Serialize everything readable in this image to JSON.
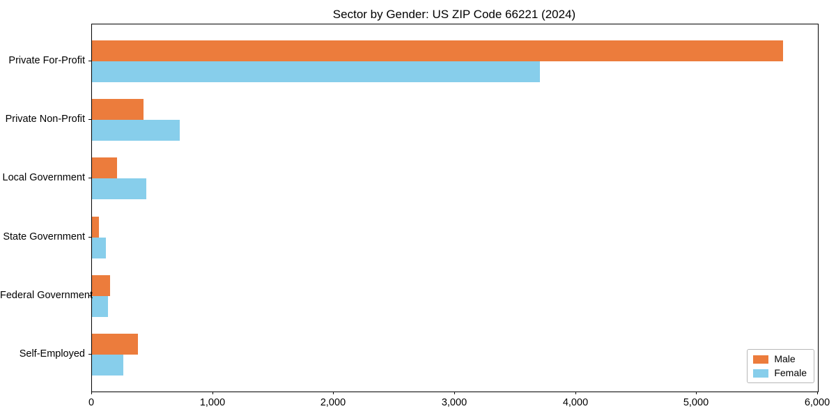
{
  "chart_data": {
    "type": "bar",
    "orientation": "horizontal",
    "title": "Sector by Gender: US ZIP Code 66221 (2024)",
    "categories": [
      "Private For-Profit",
      "Private Non-Profit",
      "Local Government",
      "State Government",
      "Federal Government",
      "Self-Employed"
    ],
    "series": [
      {
        "name": "Male",
        "color": "#EC7C3C",
        "values": [
          5710,
          425,
          205,
          55,
          150,
          380
        ]
      },
      {
        "name": "Female",
        "color": "#87CEEB",
        "values": [
          3700,
          725,
          450,
          115,
          135,
          260
        ]
      }
    ],
    "xlabel": "",
    "ylabel": "",
    "xlim": [
      0,
      6000
    ],
    "x_ticks": [
      0,
      1000,
      2000,
      3000,
      4000,
      5000,
      6000
    ],
    "x_tick_labels": [
      "0",
      "1,000",
      "2,000",
      "3,000",
      "4,000",
      "5,000",
      "6,000"
    ],
    "grid": false,
    "legend": {
      "position": "lower right"
    }
  }
}
